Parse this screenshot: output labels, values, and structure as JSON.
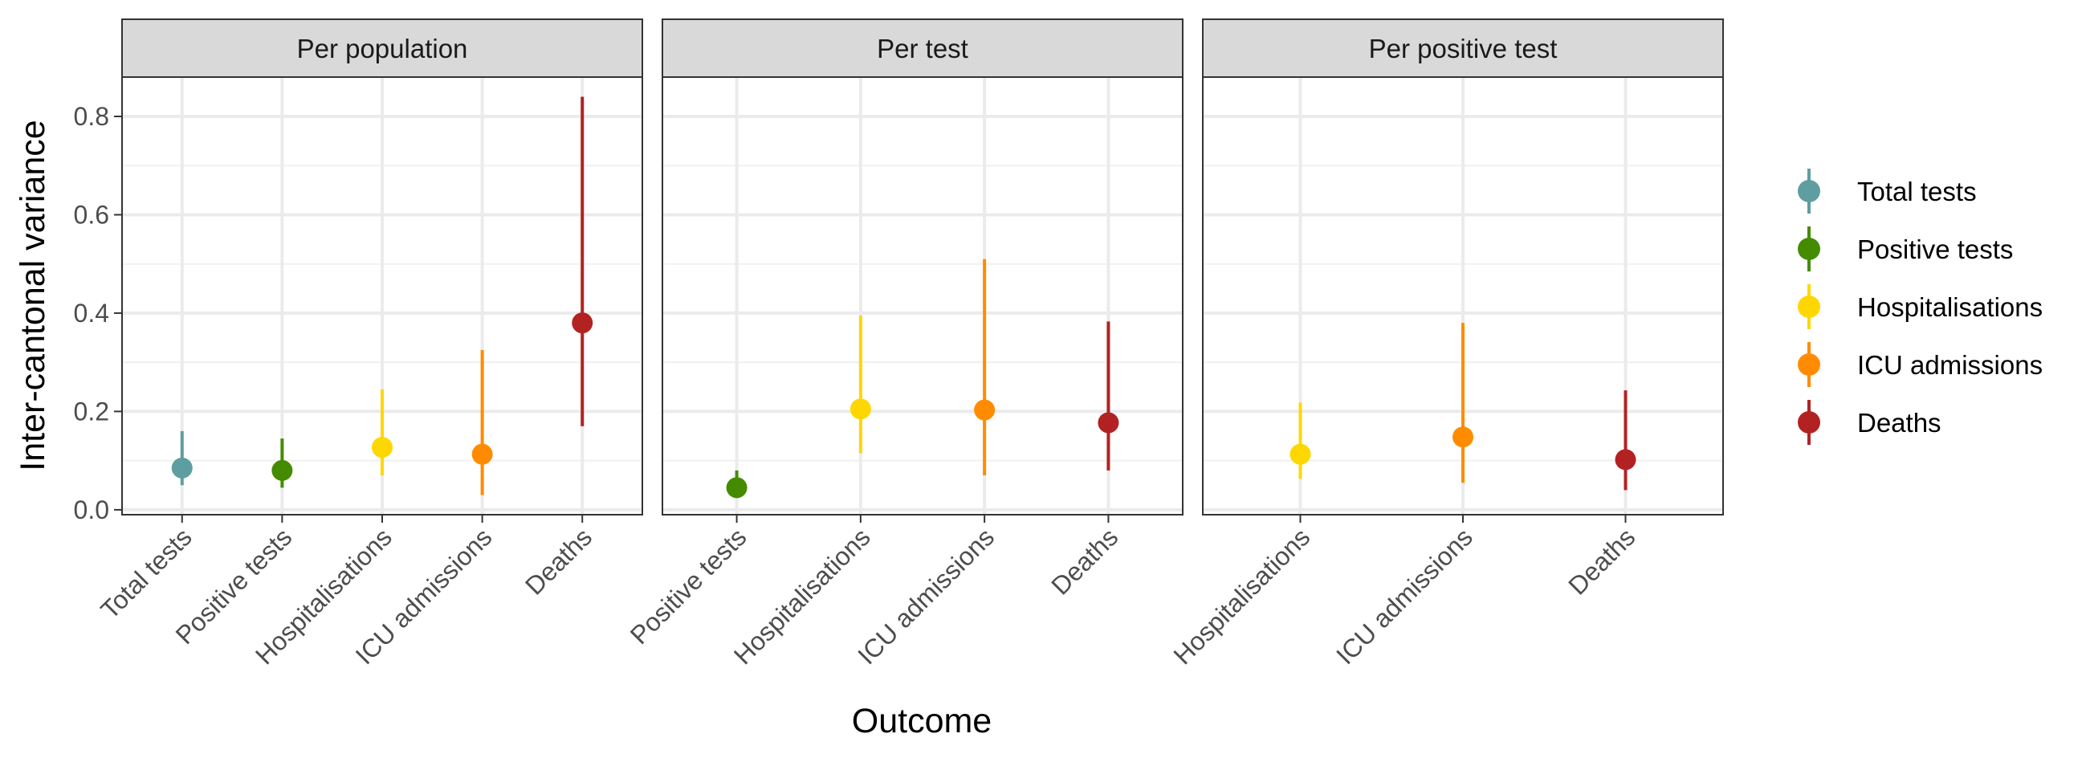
{
  "chart_data": {
    "type": "scatter",
    "subtype": "point-range",
    "ylabel": "Inter-cantonal variance",
    "xlabel": "Outcome",
    "ylim": [
      -0.01,
      0.88
    ],
    "yticks": [
      0.0,
      0.2,
      0.4,
      0.6,
      0.8
    ],
    "ytick_labels": [
      "0.0",
      "0.2",
      "0.4",
      "0.6",
      "0.8"
    ],
    "grid": true,
    "legend_position": "right",
    "legend": [
      {
        "name": "Total tests",
        "color": "#5f9ea0"
      },
      {
        "name": "Positive tests",
        "color": "#458b00"
      },
      {
        "name": "Hospitalisations",
        "color": "#ffd700"
      },
      {
        "name": "ICU admissions",
        "color": "#ff8c00"
      },
      {
        "name": "Deaths",
        "color": "#b22222"
      }
    ],
    "panels": [
      {
        "title": "Per population",
        "categories": [
          "Total tests",
          "Positive tests",
          "Hospitalisations",
          "ICU admissions",
          "Deaths"
        ],
        "points": [
          {
            "category": "Total tests",
            "value": 0.085,
            "lower": 0.05,
            "upper": 0.16
          },
          {
            "category": "Positive tests",
            "value": 0.08,
            "lower": 0.045,
            "upper": 0.145
          },
          {
            "category": "Hospitalisations",
            "value": 0.127,
            "lower": 0.07,
            "upper": 0.245
          },
          {
            "category": "ICU admissions",
            "value": 0.113,
            "lower": 0.03,
            "upper": 0.325
          },
          {
            "category": "Deaths",
            "value": 0.38,
            "lower": 0.17,
            "upper": 0.84
          }
        ]
      },
      {
        "title": "Per test",
        "categories": [
          "Positive tests",
          "Hospitalisations",
          "ICU admissions",
          "Deaths"
        ],
        "points": [
          {
            "category": "Positive tests",
            "value": 0.045,
            "lower": 0.025,
            "upper": 0.08
          },
          {
            "category": "Hospitalisations",
            "value": 0.205,
            "lower": 0.115,
            "upper": 0.395
          },
          {
            "category": "ICU admissions",
            "value": 0.203,
            "lower": 0.07,
            "upper": 0.51
          },
          {
            "category": "Deaths",
            "value": 0.177,
            "lower": 0.08,
            "upper": 0.383
          }
        ]
      },
      {
        "title": "Per positive test",
        "categories": [
          "Hospitalisations",
          "ICU admissions",
          "Deaths"
        ],
        "points": [
          {
            "category": "Hospitalisations",
            "value": 0.113,
            "lower": 0.063,
            "upper": 0.218
          },
          {
            "category": "ICU admissions",
            "value": 0.148,
            "lower": 0.055,
            "upper": 0.38
          },
          {
            "category": "Deaths",
            "value": 0.102,
            "lower": 0.04,
            "upper": 0.243
          }
        ]
      }
    ]
  }
}
